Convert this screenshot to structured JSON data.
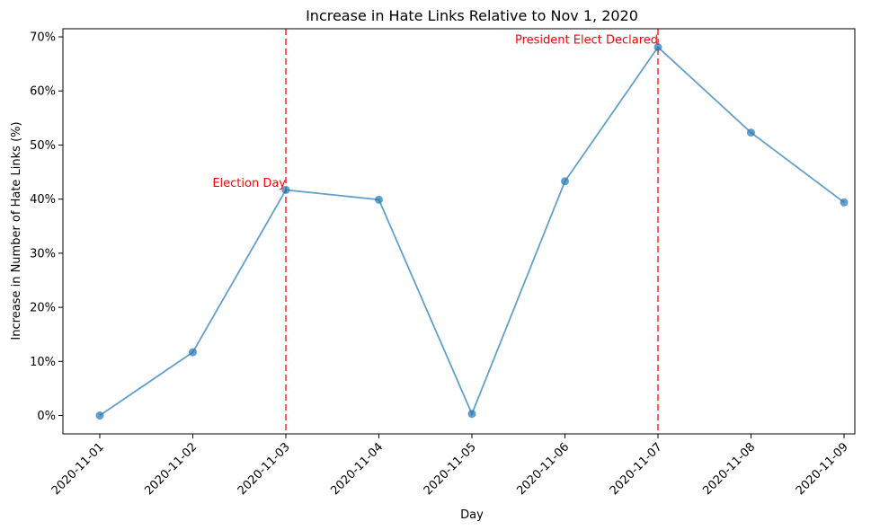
{
  "chart_data": {
    "type": "line",
    "title": "Increase in Hate Links Relative to Nov 1, 2020",
    "xlabel": "Day",
    "ylabel": "Increase in Number of Hate Links (%)",
    "categories": [
      "2020-11-01",
      "2020-11-02",
      "2020-11-03",
      "2020-11-04",
      "2020-11-05",
      "2020-11-06",
      "2020-11-07",
      "2020-11-08",
      "2020-11-09"
    ],
    "series": [
      {
        "values": [
          0,
          11.7,
          41.7,
          39.9,
          0.3,
          43.3,
          68.1,
          52.3,
          39.4
        ],
        "color": "#1f77b4"
      }
    ],
    "ylim": [
      -3.4,
      71.5
    ],
    "yticks": [
      0,
      10,
      20,
      30,
      40,
      50,
      60,
      70
    ],
    "ytick_format": "%",
    "grid": false,
    "legend": "none",
    "annotations": [
      {
        "x": "2020-11-03",
        "text": "Election Day",
        "y": 42.3,
        "color": "#ff0000"
      },
      {
        "x": "2020-11-07",
        "text": "President Elect Declared",
        "y": 68.8,
        "color": "#ff0000"
      }
    ]
  }
}
